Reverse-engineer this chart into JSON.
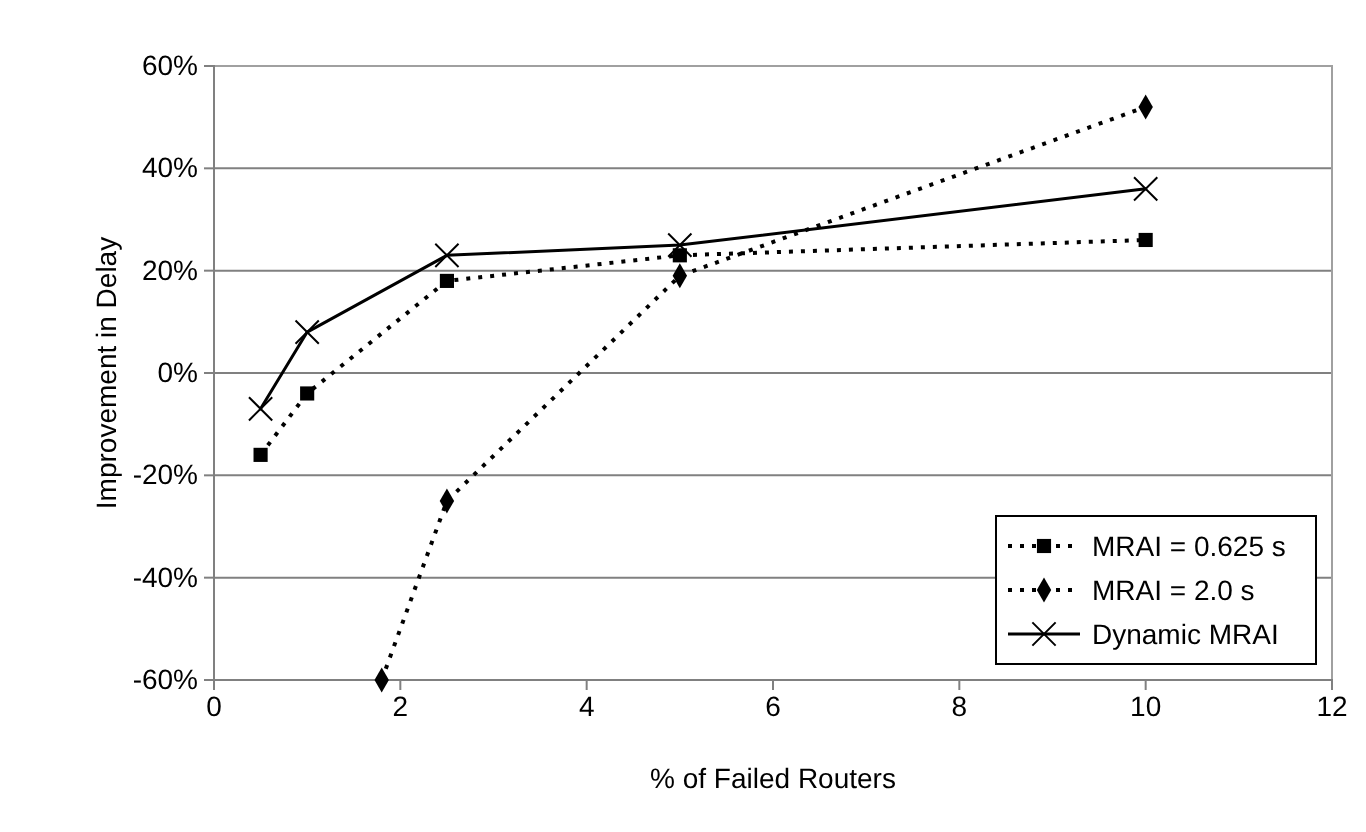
{
  "chart_data": {
    "type": "line",
    "xlabel": "% of Failed Routers",
    "ylabel": "Improvement in Delay",
    "x": [
      0.5,
      1,
      2.5,
      5,
      10
    ],
    "series": [
      {
        "name": "MRAI = 0.625 s",
        "color": "#000000",
        "values": [
          -16,
          -4,
          18,
          23,
          26
        ],
        "marker": "square",
        "line_style": "dotted"
      },
      {
        "name": "MRAI = 2.0 s",
        "color": "#000000",
        "x": [
          1.8,
          2.5,
          5,
          10
        ],
        "values": [
          -60,
          -25,
          19,
          52
        ],
        "marker": "diamond",
        "line_style": "dotted"
      },
      {
        "name": "Dynamic MRAI",
        "color": "#000000",
        "values": [
          -7,
          8,
          23,
          25,
          36
        ],
        "marker": "cross",
        "line_style": "solid"
      }
    ],
    "xlim": [
      0,
      12
    ],
    "xticks": [
      0,
      2,
      4,
      6,
      8,
      10,
      12
    ],
    "ylim": [
      -60,
      60
    ],
    "yticks": [
      {
        "value": -60,
        "label": "-60%"
      },
      {
        "value": -40,
        "label": "-40%"
      },
      {
        "value": -20,
        "label": "-20%"
      },
      {
        "value": 0,
        "label": "0%"
      },
      {
        "value": 20,
        "label": "20%"
      },
      {
        "value": 40,
        "label": "40%"
      },
      {
        "value": 60,
        "label": "60%"
      }
    ],
    "grid": "y",
    "legend": "bottom right"
  }
}
